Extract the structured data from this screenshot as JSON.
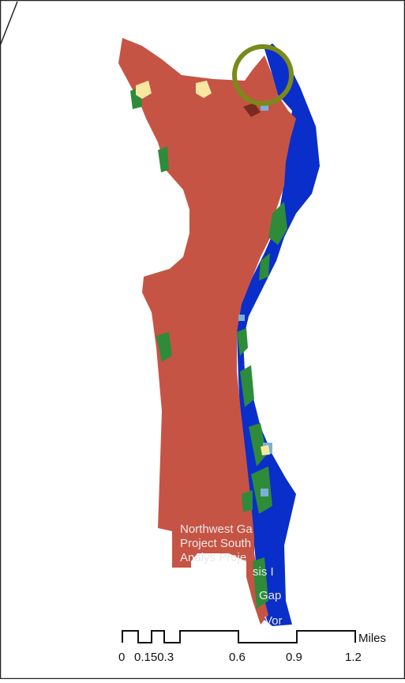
{
  "map": {
    "overlay_labels": [
      "Northwest Ga",
      "Project  South",
      "Analys  Proje",
      "sis I",
      "Gap",
      "Vor"
    ],
    "highlight_color": "#7a8a1a",
    "colors": {
      "land": "#c65444",
      "water": "#0a2ec9",
      "vegetation": "#2e8b3a",
      "light_blue": "#7ab0d8",
      "pale": "#f7e7a0"
    }
  },
  "scale_bar": {
    "unit": "Miles",
    "ticks": [
      "0",
      "0.150.3",
      "0.6",
      "0.9",
      "1.2"
    ]
  }
}
